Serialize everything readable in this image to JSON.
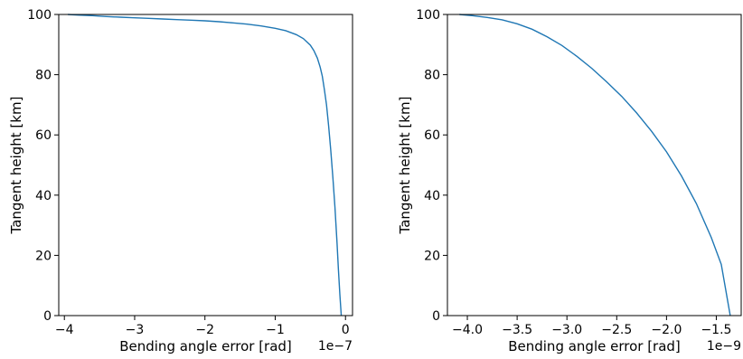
{
  "chart_data": [
    {
      "type": "line",
      "xlabel": "Bending angle error [rad]",
      "ylabel": "Tangent height [km]",
      "x_offset_label": "1e−7",
      "xlim": [
        -4.08,
        0.1
      ],
      "ylim": [
        0,
        100
      ],
      "xticks": [
        -4,
        -3,
        -2,
        -1,
        0
      ],
      "xtick_labels": [
        "−4",
        "−3",
        "−2",
        "−1",
        "0"
      ],
      "yticks": [
        0,
        20,
        40,
        60,
        80,
        100
      ],
      "ytick_labels": [
        "0",
        "20",
        "40",
        "60",
        "80",
        "100"
      ],
      "grid": false,
      "color": "#1f77b4",
      "series": [
        {
          "x": [
            -3.95,
            -3.8,
            -3.6,
            -3.4,
            -3.2,
            -3.0,
            -2.8,
            -2.6,
            -2.4,
            -2.2,
            -2.0,
            -1.8,
            -1.6,
            -1.4,
            -1.2,
            -1.0,
            -0.85,
            -0.7,
            -0.6,
            -0.5,
            -0.45,
            -0.4,
            -0.36,
            -0.33,
            -0.3,
            -0.27,
            -0.24,
            -0.21,
            -0.18,
            -0.15,
            -0.12,
            -0.1,
            -0.08,
            -0.06
          ],
          "y": [
            100,
            99.8,
            99.6,
            99.3,
            99.1,
            98.9,
            98.7,
            98.5,
            98.3,
            98.1,
            97.9,
            97.6,
            97.2,
            96.8,
            96.2,
            95.4,
            94.6,
            93.3,
            92.0,
            89.8,
            88.0,
            85.5,
            82.5,
            79.5,
            75.0,
            70.0,
            63.0,
            55.0,
            46.0,
            36.0,
            24.0,
            15.0,
            7.0,
            0
          ]
        }
      ]
    },
    {
      "type": "line",
      "xlabel": "Bending angle error [rad]",
      "ylabel": "Tangent height [km]",
      "x_offset_label": "1e−9",
      "xlim": [
        -4.2,
        -1.25
      ],
      "ylim": [
        0,
        100
      ],
      "xticks": [
        -4.0,
        -3.5,
        -3.0,
        -2.5,
        -2.0,
        -1.5
      ],
      "xtick_labels": [
        "−4.0",
        "−3.5",
        "−3.0",
        "−2.5",
        "−2.0",
        "−1.5"
      ],
      "yticks": [
        0,
        20,
        40,
        60,
        80,
        100
      ],
      "ytick_labels": [
        "0",
        "20",
        "40",
        "60",
        "80",
        "100"
      ],
      "grid": false,
      "color": "#1f77b4",
      "series": [
        {
          "x": [
            -4.08,
            -3.95,
            -3.8,
            -3.65,
            -3.5,
            -3.35,
            -3.2,
            -3.05,
            -2.9,
            -2.75,
            -2.6,
            -2.45,
            -2.3,
            -2.15,
            -2.0,
            -1.85,
            -1.7,
            -1.55,
            -1.45,
            -1.36
          ],
          "y": [
            100,
            99.6,
            99.0,
            98.2,
            96.9,
            95.1,
            92.6,
            89.7,
            86.1,
            82.1,
            77.6,
            72.8,
            67.3,
            61.2,
            54.4,
            46.4,
            37.2,
            25.9,
            17.0,
            0
          ]
        }
      ]
    }
  ]
}
